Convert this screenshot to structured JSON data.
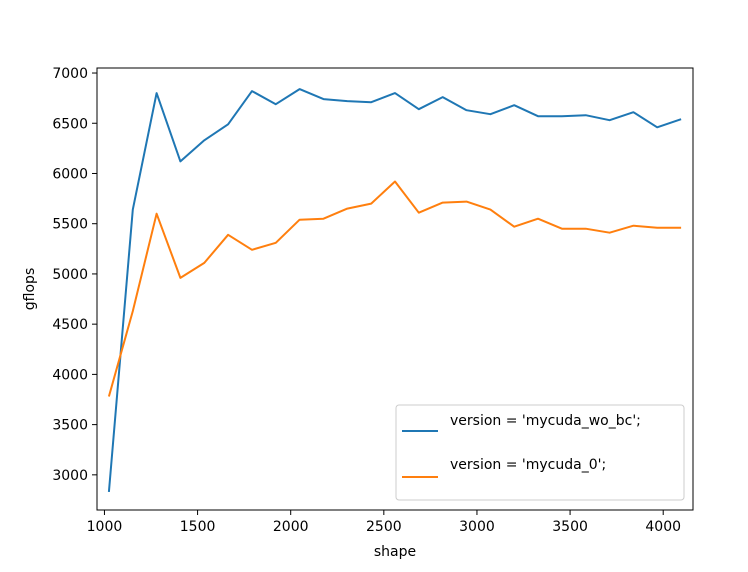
{
  "chart_data": {
    "type": "line",
    "xlabel": "shape",
    "ylabel": "gflops",
    "xlim": [
      960,
      4160
    ],
    "ylim": [
      2650,
      7050
    ],
    "xticks": [
      1000,
      1500,
      2000,
      2500,
      3000,
      3500,
      4000
    ],
    "yticks": [
      3000,
      3500,
      4000,
      4500,
      5000,
      5500,
      6000,
      6500,
      7000
    ],
    "grid": false,
    "legend_position": "lower-right",
    "x": [
      1024,
      1152,
      1280,
      1408,
      1536,
      1664,
      1792,
      1920,
      2048,
      2176,
      2304,
      2432,
      2560,
      2688,
      2816,
      2944,
      3072,
      3200,
      3328,
      3456,
      3584,
      3712,
      3840,
      3968,
      4096
    ],
    "series": [
      {
        "name": "version = 'mycuda_wo_bc';",
        "color": "#1f77b4",
        "values": [
          2830,
          5640,
          6800,
          6120,
          6330,
          6490,
          6820,
          6690,
          6840,
          6740,
          6720,
          6710,
          6800,
          6640,
          6760,
          6630,
          6590,
          6680,
          6570,
          6570,
          6580,
          6530,
          6610,
          6460,
          6540
        ]
      },
      {
        "name": "version = 'mycuda_0';",
        "color": "#ff7f0e",
        "values": [
          3780,
          4630,
          5600,
          4960,
          5110,
          5390,
          5240,
          5310,
          5540,
          5550,
          5650,
          5700,
          5920,
          5610,
          5710,
          5720,
          5640,
          5470,
          5550,
          5450,
          5450,
          5410,
          5480,
          5460,
          5460
        ]
      }
    ]
  }
}
